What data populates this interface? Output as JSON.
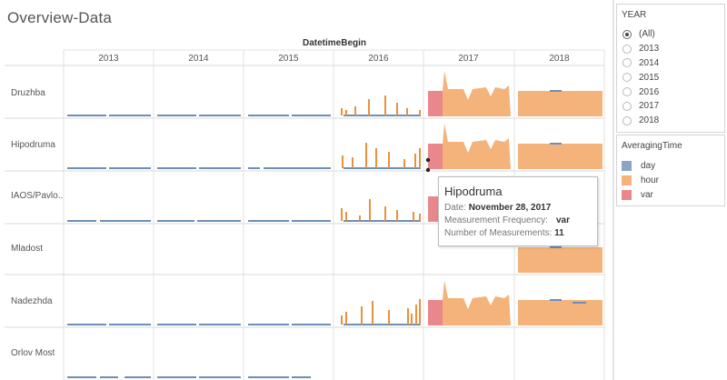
{
  "title": "Overview-Data",
  "column_header": "DatetimeBegin",
  "years": [
    "2013",
    "2014",
    "2015",
    "2016",
    "2017",
    "2018"
  ],
  "stations": [
    "Druzhba",
    "Hipodruma",
    "IAOS/Pavlo..",
    "Mladost",
    "Nadezhda",
    "Orlov Most"
  ],
  "colors": {
    "day": "#8aa4c3",
    "hour": "#f4b37a",
    "var": "#e8888c",
    "hour_line": "#e9913e",
    "day_line": "#6d8fb6"
  },
  "year_filter": {
    "title": "YEAR",
    "options": [
      "(All)",
      "2013",
      "2014",
      "2015",
      "2016",
      "2017",
      "2018"
    ],
    "selected": "(All)"
  },
  "legend": {
    "title": "AveragingTime",
    "items": [
      {
        "label": "day",
        "color": "#8aa4c3"
      },
      {
        "label": "hour",
        "color": "#f4b37a"
      },
      {
        "label": "var",
        "color": "#e8888c"
      }
    ]
  },
  "tooltip": {
    "title": "Hipodruma",
    "date_label": "Date:",
    "date_value": "November 28, 2017",
    "freq_label": "Measurement Frequency:",
    "freq_value": "var",
    "count_label": "Number of Measurements:",
    "count_value": "11"
  }
}
